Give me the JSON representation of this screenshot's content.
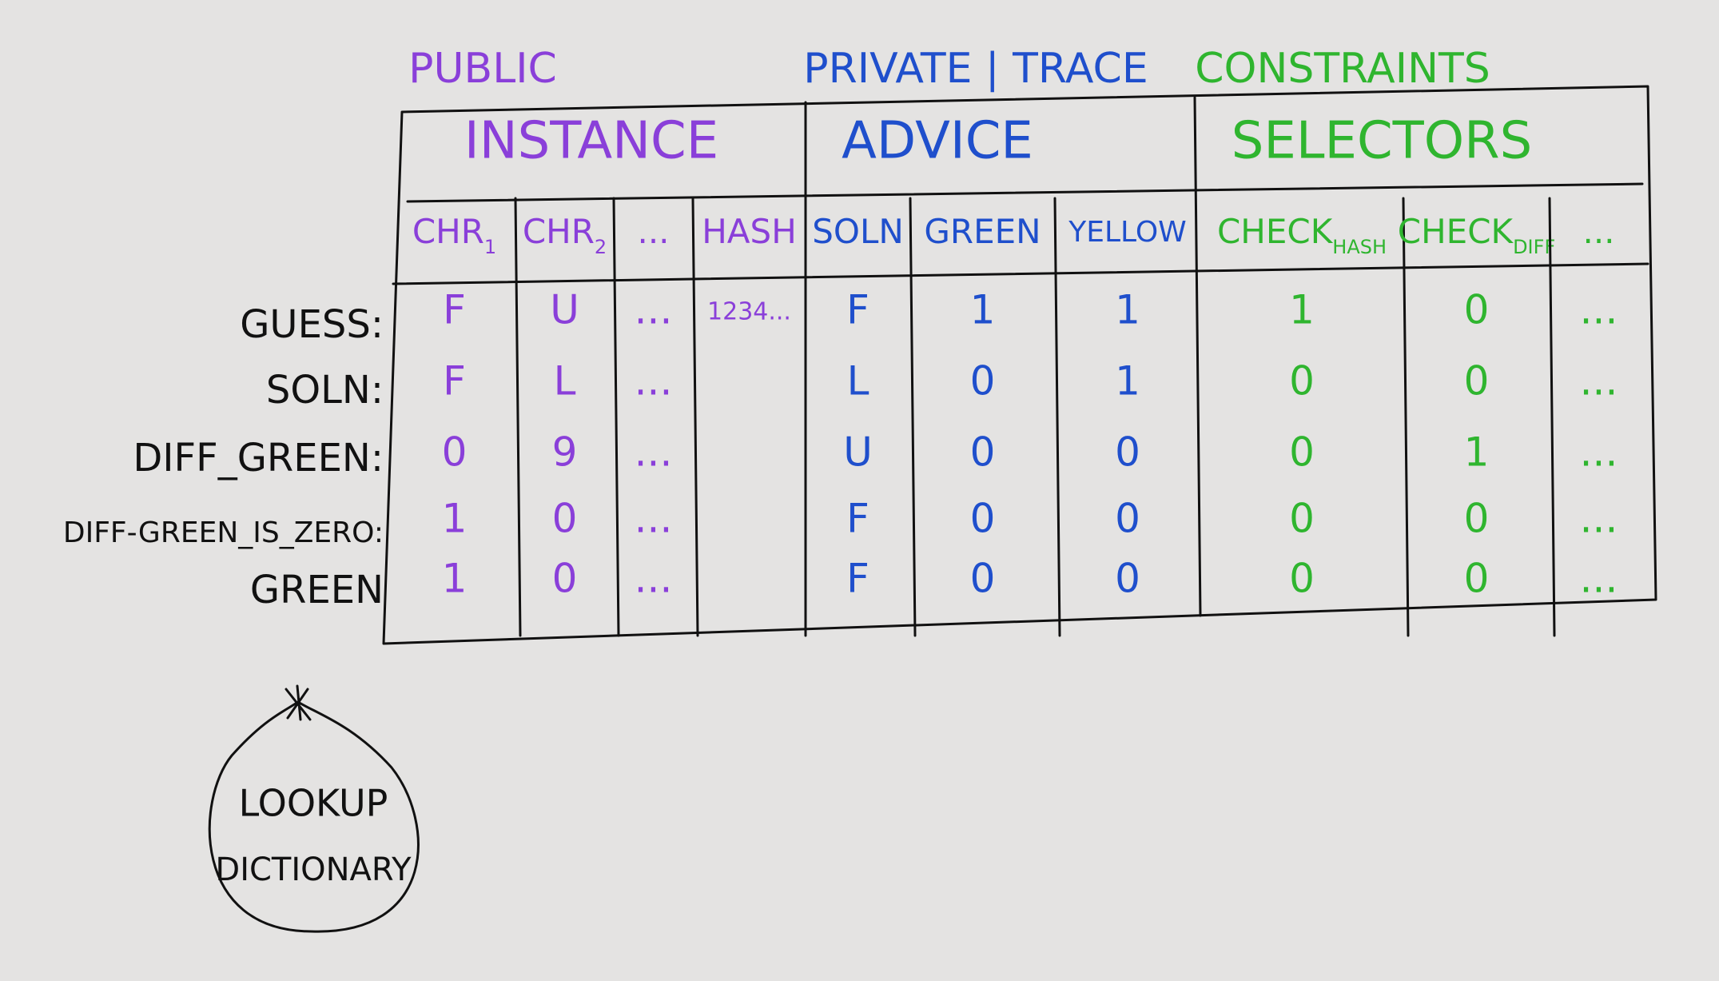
{
  "groups": [
    {
      "label": "PUBLIC",
      "title": "INSTANCE",
      "color": "#8a3fd9",
      "columns": [
        {
          "name": "CHR",
          "sub": "1",
          "cells": [
            "F",
            "F",
            "0",
            "1",
            "1"
          ]
        },
        {
          "name": "CHR",
          "sub": "2",
          "cells": [
            "U",
            "L",
            "9",
            "0",
            "0"
          ]
        },
        {
          "name": "...",
          "cells": [
            "...",
            "...",
            "...",
            "...",
            "..."
          ]
        },
        {
          "name": "HASH",
          "cells": [
            "1234..."
          ]
        }
      ]
    },
    {
      "label": "PRIVATE | TRACE",
      "title": "ADVICE",
      "color": "#1f4fcc",
      "columns": [
        {
          "name": "SOLN",
          "cells": [
            "F",
            "L",
            "U",
            "F",
            "F"
          ]
        },
        {
          "name": "GREEN",
          "cells": [
            "1",
            "0",
            "0",
            "0",
            "0"
          ]
        },
        {
          "name": "YELLOW",
          "cells": [
            "1",
            "1",
            "0",
            "0",
            "0"
          ]
        }
      ]
    },
    {
      "label": "CONSTRAINTS",
      "title": "SELECTORS",
      "color": "#2fb52f",
      "columns": [
        {
          "name": "CHECK",
          "sub": "HASH",
          "cells": [
            "1",
            "0",
            "0",
            "0",
            "0"
          ]
        },
        {
          "name": "CHECK",
          "sub": "DIFF",
          "cells": [
            "0",
            "0",
            "1",
            "0",
            "0"
          ]
        },
        {
          "name": "...",
          "cells": [
            "...",
            "...",
            "...",
            "...",
            "..."
          ]
        }
      ]
    }
  ],
  "row_labels": [
    "GUESS:",
    "SOLN:",
    "DIFF_GREEN:",
    "DIFF-GREEN_IS_ZERO:",
    "GREEN"
  ],
  "lookup": {
    "lines": [
      "LOOKUP",
      "DICTIONARY"
    ]
  }
}
